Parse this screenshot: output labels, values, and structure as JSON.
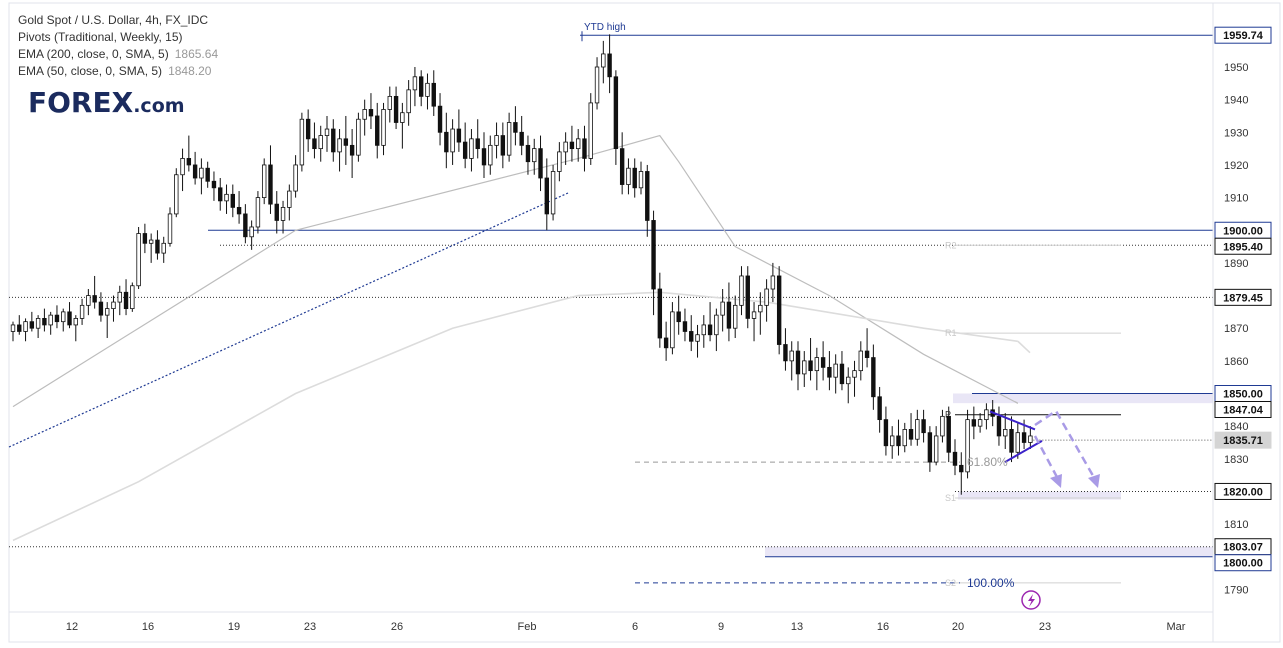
{
  "legend": {
    "title": "Gold Spot / U.S. Dollar, 4h, FX_IDC",
    "pivots": "Pivots (Traditional, Weekly, 15)",
    "ema200": "EMA (200, close, 0, SMA, 5)",
    "ema200_value": "1865.64",
    "ema50": "EMA (50, close, 0, SMA, 5)",
    "ema50_value": "1848.20"
  },
  "logo": {
    "text": "FOREX",
    "suffix": ".com"
  },
  "chart_data": {
    "type": "candlestick",
    "ylim": [
      1785,
      1968
    ],
    "y_ticks": [
      1790,
      1800,
      1810,
      1820,
      1830,
      1840,
      1850,
      1860,
      1870,
      1880,
      1890,
      1900,
      1910,
      1920,
      1930,
      1940,
      1950
    ],
    "x_ticks": [
      "12",
      "16",
      "19",
      "23",
      "26",
      "Feb",
      "6",
      "9",
      "13",
      "16",
      "20",
      "23",
      "Mar"
    ],
    "price_labels": [
      {
        "value": 1959.74,
        "text": "1959.74",
        "style": "blue"
      },
      {
        "value": 1900.0,
        "text": "1900.00",
        "style": "blue"
      },
      {
        "value": 1895.4,
        "text": "1895.40",
        "style": "black"
      },
      {
        "value": 1879.45,
        "text": "1879.45",
        "style": "black"
      },
      {
        "value": 1850.0,
        "text": "1850.00",
        "style": "blue"
      },
      {
        "value": 1847.04,
        "text": "1847.04",
        "style": "black"
      },
      {
        "value": 1835.71,
        "text": "1835.71",
        "style": "current"
      },
      {
        "value": 1820.0,
        "text": "1820.00",
        "style": "black"
      },
      {
        "value": 1803.07,
        "text": "1803.07",
        "style": "black"
      },
      {
        "value": 1800.0,
        "text": "1800.00",
        "style": "blue"
      }
    ],
    "annotations": {
      "ytd_high": "YTD high",
      "fib_618": "61.80%",
      "fib_100": "100.00%",
      "pivot_R2": "R2",
      "pivot_R1": "R1",
      "pivot_P": "P",
      "pivot_S1": "S1",
      "pivot_S2": "S2"
    },
    "candles": [
      [
        1869,
        1872,
        1866,
        1871
      ],
      [
        1871,
        1874,
        1868,
        1869
      ],
      [
        1869,
        1873,
        1866,
        1872
      ],
      [
        1872,
        1875,
        1869,
        1870
      ],
      [
        1870,
        1874,
        1867,
        1873
      ],
      [
        1873,
        1876,
        1869,
        1871
      ],
      [
        1871,
        1875,
        1868,
        1874
      ],
      [
        1874,
        1877,
        1870,
        1872
      ],
      [
        1872,
        1876,
        1869,
        1875
      ],
      [
        1875,
        1878,
        1870,
        1871
      ],
      [
        1871,
        1874,
        1866,
        1873
      ],
      [
        1873,
        1879,
        1871,
        1877
      ],
      [
        1877,
        1882,
        1874,
        1880
      ],
      [
        1880,
        1886,
        1876,
        1878
      ],
      [
        1878,
        1881,
        1872,
        1874
      ],
      [
        1874,
        1878,
        1867,
        1876
      ],
      [
        1876,
        1880,
        1872,
        1878
      ],
      [
        1878,
        1883,
        1874,
        1881
      ],
      [
        1881,
        1885,
        1874,
        1876
      ],
      [
        1876,
        1884,
        1875,
        1883
      ],
      [
        1883,
        1901,
        1882,
        1899
      ],
      [
        1899,
        1902,
        1893,
        1896
      ],
      [
        1896,
        1899,
        1890,
        1897
      ],
      [
        1897,
        1900,
        1891,
        1893
      ],
      [
        1893,
        1898,
        1890,
        1896
      ],
      [
        1896,
        1907,
        1895,
        1905
      ],
      [
        1905,
        1919,
        1904,
        1917
      ],
      [
        1917,
        1925,
        1912,
        1922
      ],
      [
        1922,
        1929,
        1918,
        1920
      ],
      [
        1920,
        1924,
        1914,
        1916
      ],
      [
        1916,
        1922,
        1911,
        1919
      ],
      [
        1919,
        1921,
        1913,
        1915
      ],
      [
        1915,
        1918,
        1909,
        1913
      ],
      [
        1913,
        1916,
        1906,
        1909
      ],
      [
        1909,
        1914,
        1905,
        1911
      ],
      [
        1911,
        1914,
        1904,
        1907
      ],
      [
        1907,
        1912,
        1902,
        1905
      ],
      [
        1905,
        1908,
        1896,
        1898
      ],
      [
        1898,
        1903,
        1894,
        1901
      ],
      [
        1901,
        1912,
        1899,
        1910
      ],
      [
        1910,
        1922,
        1908,
        1920
      ],
      [
        1920,
        1926,
        1905,
        1908
      ],
      [
        1908,
        1912,
        1899,
        1903
      ],
      [
        1903,
        1909,
        1899,
        1907
      ],
      [
        1907,
        1914,
        1903,
        1912
      ],
      [
        1912,
        1923,
        1910,
        1920
      ],
      [
        1920,
        1936,
        1918,
        1934
      ],
      [
        1934,
        1937,
        1924,
        1928
      ],
      [
        1928,
        1933,
        1922,
        1925
      ],
      [
        1925,
        1932,
        1921,
        1929
      ],
      [
        1929,
        1935,
        1924,
        1931
      ],
      [
        1931,
        1934,
        1921,
        1924
      ],
      [
        1924,
        1931,
        1918,
        1928
      ],
      [
        1928,
        1935,
        1920,
        1926
      ],
      [
        1926,
        1931,
        1916,
        1923
      ],
      [
        1923,
        1936,
        1921,
        1934
      ],
      [
        1934,
        1940,
        1929,
        1937
      ],
      [
        1937,
        1942,
        1931,
        1935
      ],
      [
        1935,
        1939,
        1922,
        1926
      ],
      [
        1926,
        1939,
        1923,
        1937
      ],
      [
        1937,
        1944,
        1933,
        1941
      ],
      [
        1941,
        1944,
        1931,
        1933
      ],
      [
        1933,
        1939,
        1925,
        1936
      ],
      [
        1936,
        1946,
        1932,
        1943
      ],
      [
        1943,
        1950,
        1938,
        1947
      ],
      [
        1947,
        1949,
        1938,
        1941
      ],
      [
        1941,
        1948,
        1937,
        1945
      ],
      [
        1945,
        1949,
        1935,
        1938
      ],
      [
        1938,
        1942,
        1926,
        1930
      ],
      [
        1930,
        1936,
        1919,
        1924
      ],
      [
        1924,
        1934,
        1920,
        1931
      ],
      [
        1931,
        1937,
        1924,
        1927
      ],
      [
        1927,
        1933,
        1919,
        1922
      ],
      [
        1922,
        1931,
        1918,
        1928
      ],
      [
        1928,
        1934,
        1922,
        1925
      ],
      [
        1925,
        1930,
        1916,
        1920
      ],
      [
        1920,
        1929,
        1917,
        1926
      ],
      [
        1926,
        1933,
        1922,
        1929
      ],
      [
        1929,
        1933,
        1919,
        1923
      ],
      [
        1923,
        1936,
        1921,
        1933
      ],
      [
        1933,
        1938,
        1926,
        1930
      ],
      [
        1930,
        1935,
        1923,
        1926
      ],
      [
        1926,
        1929,
        1917,
        1921
      ],
      [
        1921,
        1928,
        1917,
        1925
      ],
      [
        1925,
        1929,
        1912,
        1916
      ],
      [
        1916,
        1922,
        1900,
        1905
      ],
      [
        1905,
        1920,
        1903,
        1918
      ],
      [
        1918,
        1927,
        1915,
        1924
      ],
      [
        1924,
        1930,
        1920,
        1927
      ],
      [
        1927,
        1932,
        1921,
        1925
      ],
      [
        1925,
        1931,
        1921,
        1928
      ],
      [
        1928,
        1932,
        1918,
        1922
      ],
      [
        1922,
        1942,
        1920,
        1939
      ],
      [
        1939,
        1953,
        1937,
        1950
      ],
      [
        1950,
        1958,
        1945,
        1954
      ],
      [
        1954,
        1960,
        1942,
        1947
      ],
      [
        1947,
        1949,
        1920,
        1925
      ],
      [
        1925,
        1930,
        1911,
        1914
      ],
      [
        1914,
        1922,
        1911,
        1919
      ],
      [
        1919,
        1922,
        1910,
        1913
      ],
      [
        1913,
        1921,
        1911,
        1918
      ],
      [
        1918,
        1920,
        1898,
        1903
      ],
      [
        1903,
        1906,
        1874,
        1882
      ],
      [
        1882,
        1887,
        1864,
        1867
      ],
      [
        1867,
        1872,
        1860,
        1864
      ],
      [
        1864,
        1878,
        1862,
        1875
      ],
      [
        1875,
        1880,
        1868,
        1872
      ],
      [
        1872,
        1876,
        1866,
        1869
      ],
      [
        1869,
        1874,
        1863,
        1866
      ],
      [
        1866,
        1871,
        1861,
        1868
      ],
      [
        1868,
        1874,
        1864,
        1871
      ],
      [
        1871,
        1878,
        1866,
        1868
      ],
      [
        1868,
        1876,
        1863,
        1874
      ],
      [
        1874,
        1882,
        1869,
        1878
      ],
      [
        1878,
        1884,
        1866,
        1870
      ],
      [
        1870,
        1880,
        1867,
        1877
      ],
      [
        1877,
        1889,
        1874,
        1886
      ],
      [
        1886,
        1889,
        1870,
        1873
      ],
      [
        1873,
        1878,
        1866,
        1875
      ],
      [
        1875,
        1881,
        1868,
        1877
      ],
      [
        1877,
        1885,
        1872,
        1882
      ],
      [
        1882,
        1890,
        1878,
        1886
      ],
      [
        1886,
        1889,
        1862,
        1865
      ],
      [
        1865,
        1870,
        1857,
        1860
      ],
      [
        1860,
        1866,
        1854,
        1863
      ],
      [
        1863,
        1866,
        1851,
        1856
      ],
      [
        1856,
        1863,
        1852,
        1860
      ],
      [
        1860,
        1867,
        1854,
        1857
      ],
      [
        1857,
        1864,
        1851,
        1861
      ],
      [
        1861,
        1866,
        1854,
        1858
      ],
      [
        1858,
        1863,
        1851,
        1855
      ],
      [
        1855,
        1862,
        1850,
        1859
      ],
      [
        1859,
        1863,
        1851,
        1853
      ],
      [
        1853,
        1858,
        1847,
        1855
      ],
      [
        1855,
        1860,
        1849,
        1857
      ],
      [
        1857,
        1866,
        1854,
        1863
      ],
      [
        1863,
        1870,
        1858,
        1861
      ],
      [
        1861,
        1865,
        1845,
        1849
      ],
      [
        1849,
        1852,
        1838,
        1842
      ],
      [
        1842,
        1846,
        1831,
        1834
      ],
      [
        1834,
        1840,
        1830,
        1837
      ],
      [
        1837,
        1842,
        1831,
        1834
      ],
      [
        1834,
        1841,
        1832,
        1839
      ],
      [
        1839,
        1844,
        1834,
        1836
      ],
      [
        1836,
        1845,
        1834,
        1842
      ],
      [
        1842,
        1845,
        1835,
        1838
      ],
      [
        1838,
        1840,
        1826,
        1829
      ],
      [
        1829,
        1840,
        1828,
        1837
      ],
      [
        1837,
        1845,
        1835,
        1843
      ],
      [
        1843,
        1846,
        1829,
        1832
      ],
      [
        1832,
        1836,
        1825,
        1828
      ],
      [
        1828,
        1832,
        1819,
        1826
      ],
      [
        1826,
        1845,
        1824,
        1842
      ],
      [
        1842,
        1846,
        1836,
        1840
      ],
      [
        1840,
        1844,
        1838,
        1842
      ],
      [
        1842,
        1847,
        1839,
        1845
      ],
      [
        1845,
        1848,
        1840,
        1843
      ],
      [
        1843,
        1846,
        1834,
        1837
      ],
      [
        1837,
        1844,
        1833,
        1839
      ],
      [
        1839,
        1843,
        1829,
        1832
      ],
      [
        1832,
        1841,
        1830,
        1838
      ],
      [
        1838,
        1842,
        1833,
        1835
      ],
      [
        1835,
        1840,
        1833,
        1837
      ]
    ],
    "ema50": [
      [
        0,
        1846
      ],
      [
        20,
        1870
      ],
      [
        45,
        1900
      ],
      [
        90,
        1922
      ],
      [
        103,
        1929
      ],
      [
        106,
        1921
      ],
      [
        115,
        1895
      ],
      [
        130,
        1880
      ],
      [
        145,
        1862
      ],
      [
        160,
        1847
      ]
    ],
    "ema200": [
      [
        0,
        1805
      ],
      [
        20,
        1823
      ],
      [
        45,
        1850
      ],
      [
        70,
        1870
      ],
      [
        90,
        1880
      ],
      [
        103,
        1881
      ],
      [
        120,
        1878
      ],
      [
        145,
        1870
      ],
      [
        160,
        1866
      ]
    ]
  }
}
